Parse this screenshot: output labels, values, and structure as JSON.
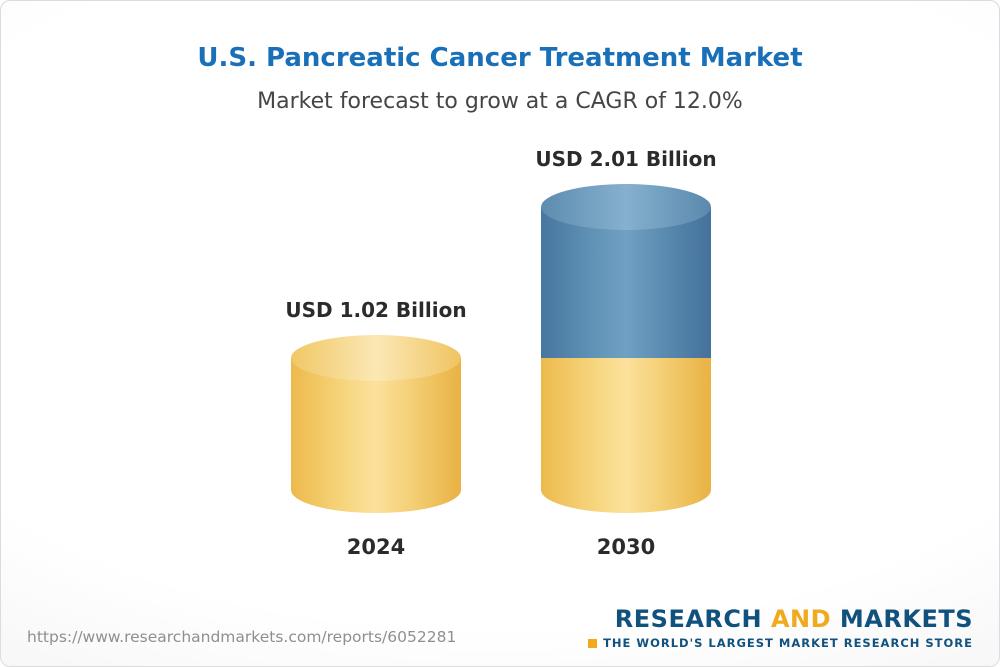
{
  "header": {
    "title": "U.S. Pancreatic Cancer Treatment Market",
    "subtitle": "Market forecast to grow at a CAGR of 12.0%"
  },
  "chart_data": {
    "type": "bar",
    "variant": "3d-cylinder-stacked",
    "title": "U.S. Pancreatic Cancer Treatment Market",
    "subtitle": "Market forecast to grow at a CAGR of 12.0%",
    "cagr": "12.0%",
    "unit": "USD Billion",
    "categories": [
      "2024",
      "2030"
    ],
    "values": [
      1.02,
      2.01
    ],
    "bars": [
      {
        "category": "2024",
        "value": 1.02,
        "value_label": "USD 1.02 Billion",
        "segments": [
          {
            "color": "yellow",
            "value": 1.02
          }
        ]
      },
      {
        "category": "2030",
        "value": 2.01,
        "value_label": "USD 2.01 Billion",
        "segments": [
          {
            "color": "blue",
            "value": 0.99
          },
          {
            "color": "yellow",
            "value": 1.02
          }
        ]
      }
    ],
    "colors": {
      "yellow": "#F6CE6E",
      "blue": "#5987AE"
    },
    "xlabel": "",
    "ylabel": "",
    "legend": null,
    "grid": false
  },
  "footer": {
    "url": "https://www.researchandmarkets.com/reports/6052281",
    "logo": {
      "research": "RESEARCH ",
      "and": "AND",
      "markets": " MARKETS",
      "tagline": "THE WORLD'S LARGEST MARKET RESEARCH STORE"
    }
  }
}
